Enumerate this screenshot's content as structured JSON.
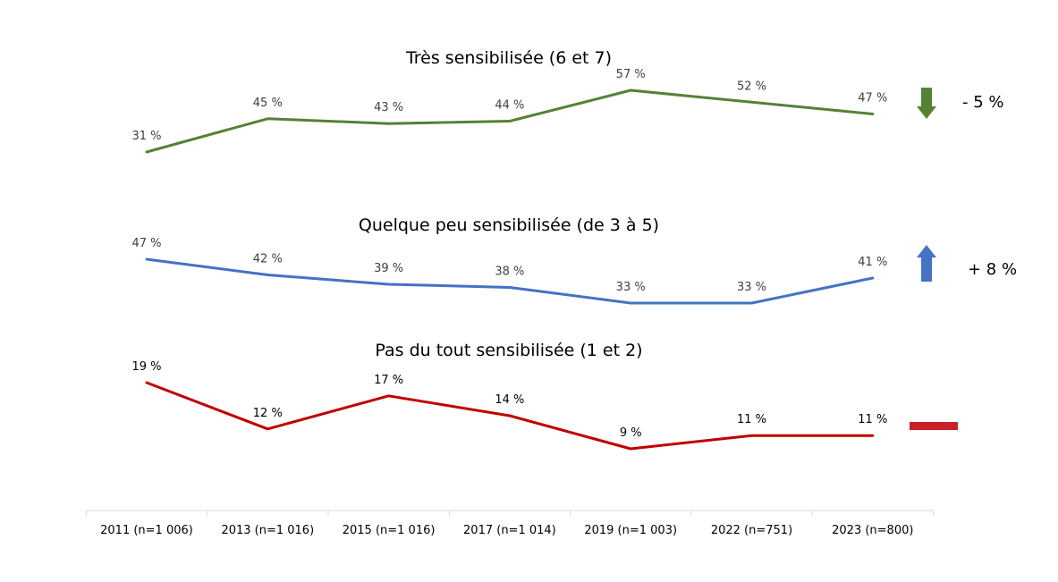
{
  "chart_data": {
    "type": "line",
    "categories": [
      "2011 (n=1 006)",
      "2013 (n=1 016)",
      "2015 (n=1 016)",
      "2017 (n=1 014)",
      "2019 (n=1 003)",
      "2022 (n=751)",
      "2023 (n=800)"
    ],
    "panels": [
      {
        "title": "Très sensibilisée (6 et 7)",
        "color": "#548235",
        "values": [
          31,
          45,
          43,
          44,
          57,
          52,
          47
        ],
        "labels": [
          "31 %",
          "45 %",
          "43 %",
          "44 %",
          "57 %",
          "52 %",
          "47 %"
        ],
        "change": "- 5 %",
        "trend": "down"
      },
      {
        "title": "Quelque peu sensibilisée (de 3 à 5)",
        "color": "#4472c4",
        "values": [
          47,
          42,
          39,
          38,
          33,
          33,
          41
        ],
        "labels": [
          "47 %",
          "42 %",
          "39 %",
          "38 %",
          "33 %",
          "33 %",
          "41 %"
        ],
        "change": "+ 8 %",
        "trend": "up"
      },
      {
        "title": "Pas du tout sensibilisée (1 et 2)",
        "color": "#c00000",
        "values": [
          19,
          12,
          17,
          14,
          9,
          11,
          11
        ],
        "labels": [
          "19 %",
          "12 %",
          "17 %",
          "14 %",
          "9 %",
          "11 %",
          "11 %"
        ],
        "change": "",
        "trend": "flat"
      }
    ]
  }
}
